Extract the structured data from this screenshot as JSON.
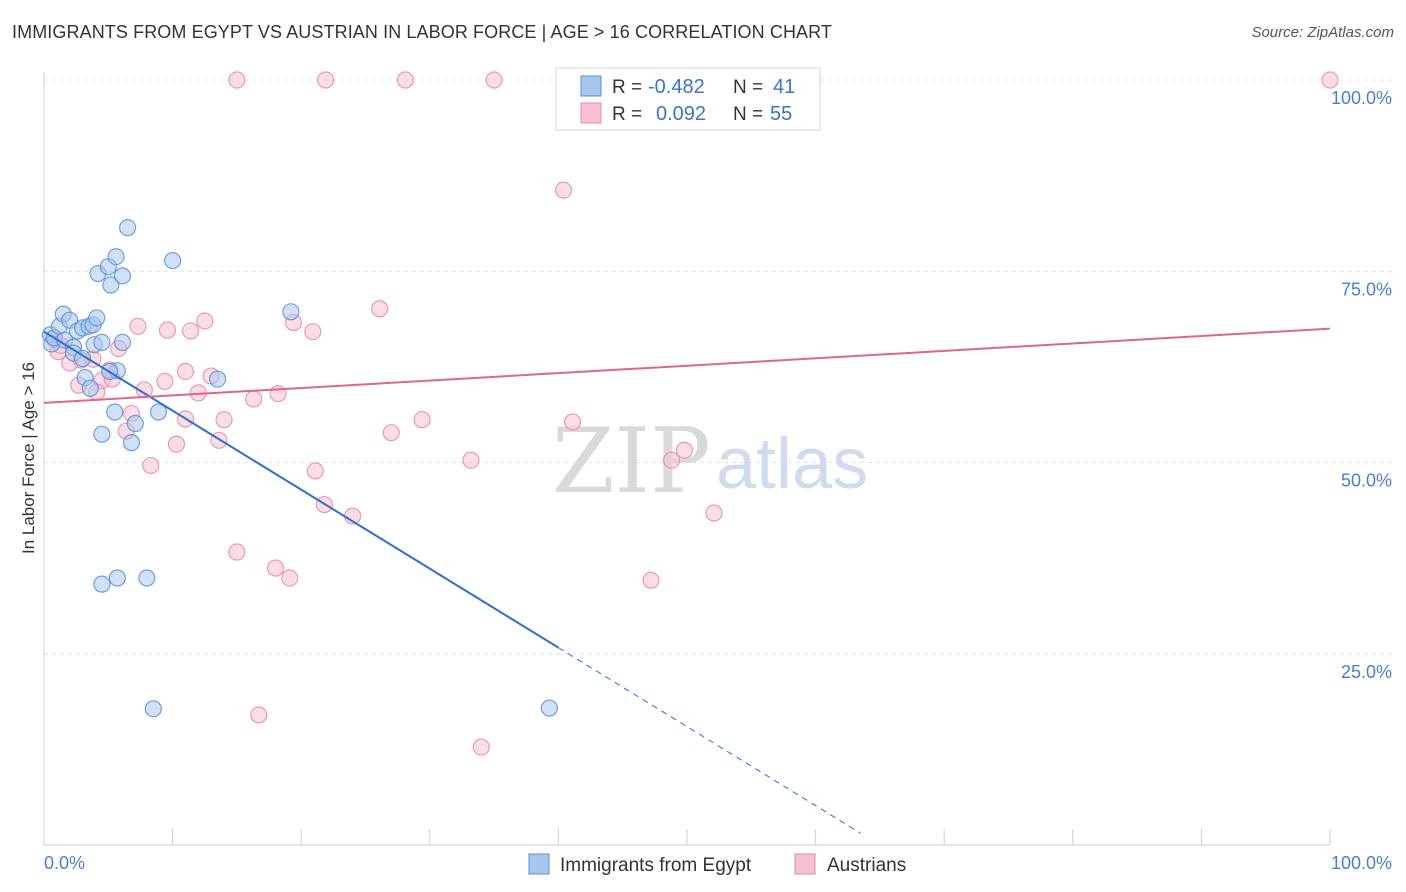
{
  "title": "IMMIGRANTS FROM EGYPT VS AUSTRIAN IN LABOR FORCE | AGE > 16 CORRELATION CHART",
  "source": "Source: ZipAtlas.com",
  "watermark": {
    "zip": "ZIP",
    "atlas": "atlas"
  },
  "colors": {
    "blue": "#5b8fd9",
    "blue_fill": "#a9c6ef",
    "blue_line": "#2d6fd1",
    "pink": "#e88aaa",
    "pink_fill": "#f6c1d3",
    "pink_line": "#e0658e",
    "tick_text": "#4a7fcf",
    "grid": "#e2e2e2"
  },
  "stats_box": {
    "rows": [
      {
        "r_label": "R =",
        "r_value": "-0.482",
        "n_label": "N =",
        "n_value": "41",
        "series": "blue"
      },
      {
        "r_label": "R =",
        "r_value": "0.092",
        "n_label": "N =",
        "n_value": "55",
        "series": "pink"
      }
    ]
  },
  "chart_data": {
    "type": "scatter",
    "xlabel": "",
    "ylabel": "In Labor Force | Age > 16",
    "xlim": [
      0,
      100
    ],
    "ylim": [
      0,
      100
    ],
    "x_tick_labels": [
      "0.0%",
      "100.0%"
    ],
    "y_ticks": [
      25,
      50,
      75,
      100
    ],
    "y_tick_labels": [
      "25.0%",
      "50.0%",
      "75.0%",
      "100.0%"
    ],
    "grid": true,
    "legend_position": "bottom-center",
    "series": [
      {
        "name": "Immigrants from Egypt",
        "color": "blue",
        "trend": {
          "x0": 0,
          "y0": 67.1,
          "x1": 40,
          "y1": 25.8,
          "dash_to_x": 63.5
        },
        "points": [
          [
            0.5,
            66.7
          ],
          [
            0.6,
            65.5
          ],
          [
            0.8,
            66.3
          ],
          [
            1.2,
            67.8
          ],
          [
            1.5,
            69.4
          ],
          [
            1.6,
            66.0
          ],
          [
            2.0,
            68.6
          ],
          [
            2.3,
            65.1
          ],
          [
            2.3,
            64.3
          ],
          [
            2.6,
            67.2
          ],
          [
            3.0,
            63.6
          ],
          [
            3.2,
            61.1
          ],
          [
            3.0,
            67.6
          ],
          [
            3.5,
            67.8
          ],
          [
            3.6,
            59.7
          ],
          [
            3.8,
            68.0
          ],
          [
            3.9,
            65.4
          ],
          [
            4.1,
            68.9
          ],
          [
            4.5,
            65.7
          ],
          [
            4.2,
            74.7
          ],
          [
            5.0,
            75.6
          ],
          [
            5.2,
            73.2
          ],
          [
            5.6,
            76.9
          ],
          [
            6.1,
            74.4
          ],
          [
            6.5,
            80.7
          ],
          [
            5.7,
            62.0
          ],
          [
            5.5,
            56.6
          ],
          [
            4.5,
            53.7
          ],
          [
            6.8,
            52.6
          ],
          [
            7.1,
            55.1
          ],
          [
            8.9,
            56.6
          ],
          [
            10.0,
            76.4
          ],
          [
            19.2,
            69.7
          ],
          [
            13.5,
            60.9
          ],
          [
            4.5,
            34.1
          ],
          [
            5.7,
            34.9
          ],
          [
            8.0,
            34.9
          ],
          [
            8.5,
            17.8
          ],
          [
            39.3,
            17.9
          ],
          [
            5.1,
            61.9
          ],
          [
            6.1,
            65.7
          ]
        ]
      },
      {
        "name": "Austrians",
        "color": "pink",
        "trend": {
          "x0": 0,
          "y0": 57.8,
          "x1": 100,
          "y1": 67.5
        },
        "points": [
          [
            15.0,
            100
          ],
          [
            21.9,
            100
          ],
          [
            28.1,
            100
          ],
          [
            35.0,
            100
          ],
          [
            100,
            100
          ],
          [
            40.4,
            85.6
          ],
          [
            26.1,
            70.1
          ],
          [
            12.5,
            68.5
          ],
          [
            7.3,
            67.8
          ],
          [
            9.6,
            67.3
          ],
          [
            11.4,
            67.2
          ],
          [
            20.9,
            67.1
          ],
          [
            19.4,
            68.3
          ],
          [
            2.0,
            63.0
          ],
          [
            2.9,
            63.4
          ],
          [
            1.1,
            64.5
          ],
          [
            3.8,
            63.5
          ],
          [
            4.5,
            60.7
          ],
          [
            5.3,
            60.9
          ],
          [
            4.1,
            59.2
          ],
          [
            5.8,
            64.9
          ],
          [
            7.8,
            59.5
          ],
          [
            9.4,
            60.6
          ],
          [
            11.0,
            61.9
          ],
          [
            12.0,
            59.1
          ],
          [
            13.0,
            61.3
          ],
          [
            16.3,
            58.3
          ],
          [
            18.2,
            59.0
          ],
          [
            13.6,
            52.9
          ],
          [
            14.0,
            55.6
          ],
          [
            6.4,
            54.1
          ],
          [
            6.8,
            56.4
          ],
          [
            11.0,
            55.7
          ],
          [
            10.3,
            52.4
          ],
          [
            8.3,
            49.6
          ],
          [
            21.1,
            48.9
          ],
          [
            21.8,
            44.5
          ],
          [
            24.0,
            43.0
          ],
          [
            33.2,
            50.3
          ],
          [
            27.0,
            53.9
          ],
          [
            29.4,
            55.6
          ],
          [
            41.1,
            55.3
          ],
          [
            48.8,
            50.3
          ],
          [
            49.8,
            51.6
          ],
          [
            52.1,
            43.4
          ],
          [
            15.0,
            38.3
          ],
          [
            18.0,
            36.2
          ],
          [
            19.1,
            34.9
          ],
          [
            47.2,
            34.6
          ],
          [
            16.7,
            17.0
          ],
          [
            34.0,
            12.8
          ],
          [
            1.3,
            65.3
          ],
          [
            5.1,
            62.1
          ],
          [
            2.7,
            60.1
          ],
          [
            0.8,
            66.1
          ]
        ]
      }
    ]
  },
  "legend": {
    "items": [
      {
        "label": "Immigrants from Egypt",
        "color": "blue"
      },
      {
        "label": "Austrians",
        "color": "pink"
      }
    ]
  }
}
